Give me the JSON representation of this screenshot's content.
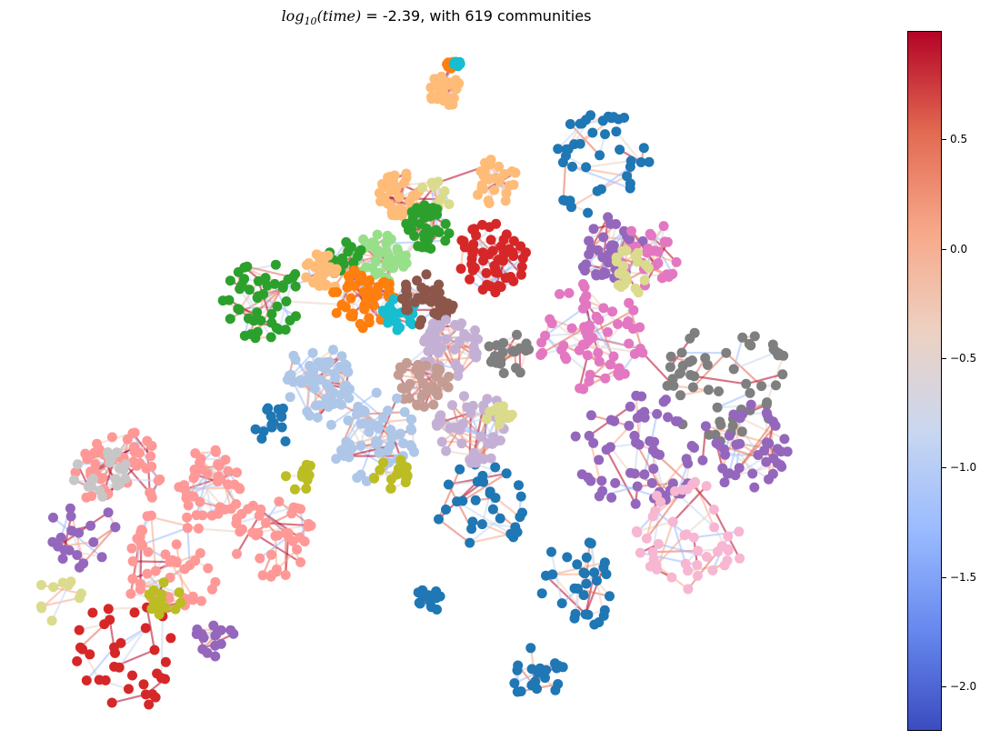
{
  "figure": {
    "title_prefix_math": "log",
    "title_sub": "10",
    "title_math_arg": "(time)",
    "title_rest": " =  -2.39, with 619 communities"
  },
  "colorbar": {
    "colormap": "coolwarm",
    "min": -2.2,
    "max": 1.0,
    "ticks": [
      {
        "value": 0.5,
        "label": "0.5"
      },
      {
        "value": 0.0,
        "label": "0.0"
      },
      {
        "value": -0.5,
        "label": "−0.5"
      },
      {
        "value": -1.0,
        "label": "−1.0"
      },
      {
        "value": -1.5,
        "label": "−1.5"
      },
      {
        "value": -2.0,
        "label": "−2.0"
      }
    ],
    "stops": [
      "#3b4cc0",
      "#6788ee",
      "#9abbff",
      "#c9d7f0",
      "#edd1c2",
      "#f7a889",
      "#e26952",
      "#b40426"
    ]
  },
  "node_palette": [
    "#1f77b4",
    "#ff7f0e",
    "#2ca02c",
    "#d62728",
    "#9467bd",
    "#8c564b",
    "#e377c2",
    "#7f7f7f",
    "#bcbd22",
    "#17becf",
    "#aec7e8",
    "#ffbb78",
    "#98df8a",
    "#ff9896",
    "#c5b0d5",
    "#c49c94",
    "#f7b6d2",
    "#c7c7c7",
    "#dbdb8d",
    "#9edae5"
  ]
}
